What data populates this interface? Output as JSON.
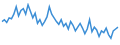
{
  "chart_data": {
    "type": "line",
    "categories": [
      null,
      null,
      null,
      null,
      null,
      null,
      null,
      null,
      null,
      null,
      null,
      null,
      null,
      null,
      null,
      null,
      null,
      null,
      null,
      null,
      null,
      null,
      null,
      null,
      null,
      null,
      null,
      null,
      null,
      null,
      null,
      null,
      null,
      null,
      null,
      null,
      null,
      null,
      null,
      null,
      null,
      null,
      null,
      null,
      null,
      null,
      null,
      null,
      null,
      null
    ],
    "values": [
      22,
      24,
      21,
      26,
      25,
      30,
      38,
      28,
      34,
      36,
      30,
      40,
      33,
      26,
      31,
      20,
      24,
      18,
      22,
      27,
      38,
      30,
      26,
      22,
      19,
      24,
      17,
      20,
      14,
      22,
      18,
      12,
      16,
      20,
      15,
      9,
      14,
      24,
      11,
      16,
      13,
      6,
      12,
      10,
      15,
      8,
      4,
      12,
      14,
      16
    ],
    "color": "#3d8fd6",
    "ylim": [
      0,
      42
    ],
    "grid": false,
    "tick_labels": false
  }
}
